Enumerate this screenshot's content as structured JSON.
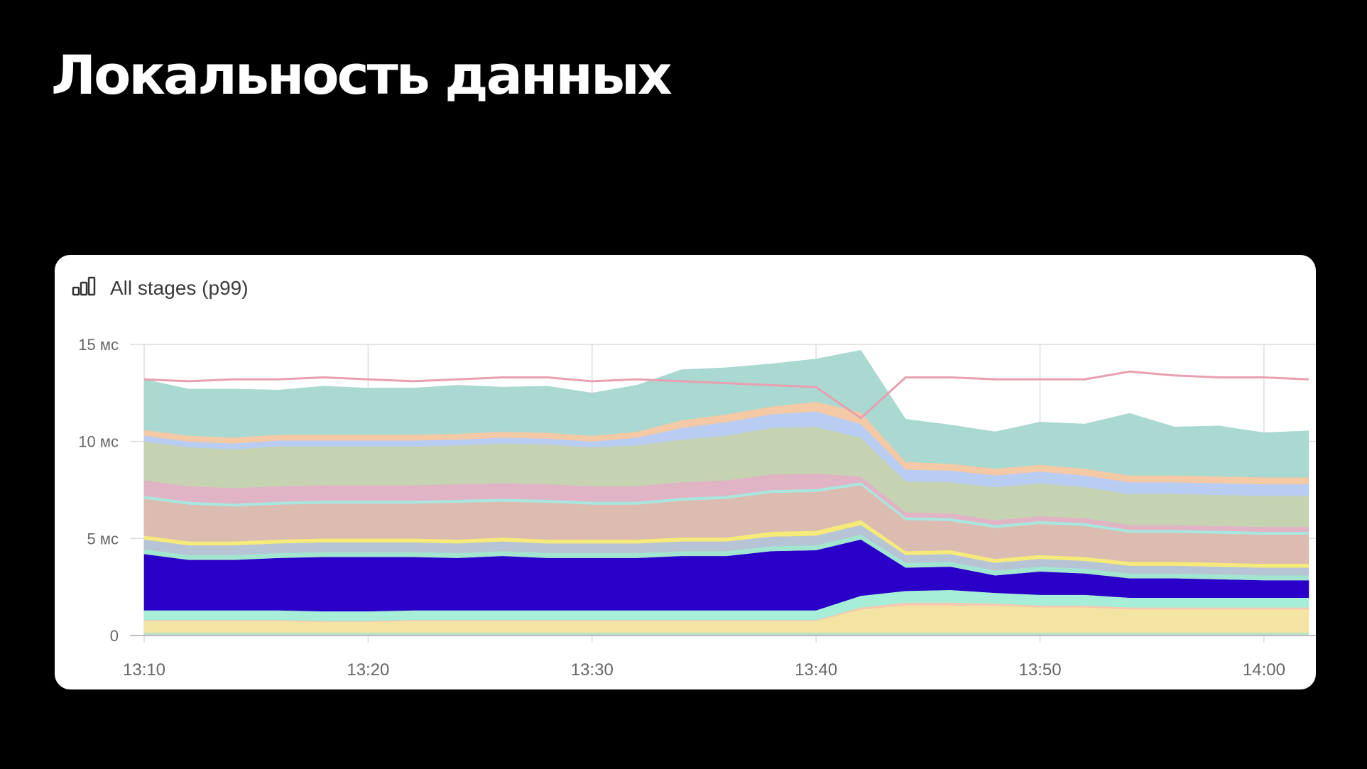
{
  "slide": {
    "title": "Локальность данных"
  },
  "panel": {
    "title": "All stages (p99)",
    "icon": "bar-chart-icon"
  },
  "chart_data": {
    "type": "area",
    "stacked": true,
    "title": "All stages (p99)",
    "x_ticks": [
      "13:10",
      "13:20",
      "13:30",
      "13:40",
      "13:50",
      "14:00"
    ],
    "y_ticks": [
      {
        "value": 0,
        "label": "0"
      },
      {
        "value": 5,
        "label": "5 мс"
      },
      {
        "value": 10,
        "label": "10 мс"
      },
      {
        "value": 15,
        "label": "15 мс"
      }
    ],
    "ylim": [
      0,
      15
    ],
    "xlim": [
      0,
      52
    ],
    "grid": true,
    "x": [
      0,
      2,
      4,
      6,
      8,
      10,
      12,
      14,
      16,
      18,
      20,
      22,
      24,
      26,
      28,
      30,
      32,
      34,
      36,
      38,
      40,
      42,
      44,
      46,
      48,
      50,
      52
    ],
    "series": [
      {
        "color": "#b9e3c6",
        "values": [
          0.15,
          0.15,
          0.15,
          0.15,
          0.15,
          0.15,
          0.15,
          0.15,
          0.15,
          0.15,
          0.15,
          0.15,
          0.15,
          0.15,
          0.15,
          0.15,
          0.15,
          0.15,
          0.15,
          0.15,
          0.15,
          0.15,
          0.15,
          0.15,
          0.15,
          0.15,
          0.15
        ]
      },
      {
        "color": "#f3e4a4",
        "values": [
          0.6,
          0.6,
          0.6,
          0.6,
          0.55,
          0.55,
          0.6,
          0.6,
          0.6,
          0.6,
          0.6,
          0.6,
          0.6,
          0.6,
          0.6,
          0.6,
          1.2,
          1.4,
          1.4,
          1.4,
          1.3,
          1.3,
          1.2,
          1.2,
          1.2,
          1.2,
          1.2
        ]
      },
      {
        "color": "#f5c8b0",
        "values": [
          0.05,
          0.05,
          0.05,
          0.05,
          0.05,
          0.05,
          0.05,
          0.05,
          0.05,
          0.05,
          0.05,
          0.05,
          0.05,
          0.05,
          0.05,
          0.05,
          0.1,
          0.15,
          0.15,
          0.1,
          0.1,
          0.1,
          0.1,
          0.1,
          0.1,
          0.1,
          0.1
        ]
      },
      {
        "color": "#a6eed8",
        "values": [
          0.5,
          0.5,
          0.5,
          0.5,
          0.5,
          0.5,
          0.5,
          0.5,
          0.5,
          0.5,
          0.5,
          0.5,
          0.5,
          0.5,
          0.5,
          0.5,
          0.6,
          0.6,
          0.65,
          0.55,
          0.55,
          0.55,
          0.5,
          0.5,
          0.5,
          0.5,
          0.5
        ]
      },
      {
        "color": "#2a00c9",
        "values": [
          2.9,
          2.6,
          2.6,
          2.7,
          2.8,
          2.8,
          2.75,
          2.7,
          2.8,
          2.7,
          2.7,
          2.7,
          2.8,
          2.8,
          3.05,
          3.1,
          2.9,
          1.2,
          1.2,
          0.9,
          1.2,
          1.1,
          1.0,
          1.0,
          0.95,
          0.9,
          0.9
        ]
      },
      {
        "color": "#a3e6cf",
        "values": [
          0.25,
          0.25,
          0.25,
          0.25,
          0.25,
          0.25,
          0.25,
          0.25,
          0.25,
          0.25,
          0.25,
          0.25,
          0.25,
          0.25,
          0.25,
          0.25,
          0.25,
          0.25,
          0.25,
          0.25,
          0.25,
          0.25,
          0.25,
          0.25,
          0.25,
          0.25,
          0.25
        ]
      },
      {
        "color": "#b7c4d6",
        "values": [
          0.5,
          0.5,
          0.5,
          0.5,
          0.5,
          0.5,
          0.5,
          0.5,
          0.5,
          0.5,
          0.5,
          0.5,
          0.5,
          0.5,
          0.5,
          0.5,
          0.5,
          0.4,
          0.4,
          0.4,
          0.4,
          0.4,
          0.4,
          0.4,
          0.4,
          0.4,
          0.4
        ]
      },
      {
        "color": "#f5ea7a",
        "values": [
          0.2,
          0.2,
          0.2,
          0.2,
          0.2,
          0.2,
          0.2,
          0.2,
          0.2,
          0.2,
          0.2,
          0.2,
          0.2,
          0.2,
          0.25,
          0.25,
          0.25,
          0.2,
          0.2,
          0.2,
          0.2,
          0.2,
          0.2,
          0.2,
          0.2,
          0.2,
          0.2
        ]
      },
      {
        "color": "#dcbcb0",
        "values": [
          1.9,
          1.9,
          1.8,
          1.8,
          1.8,
          1.8,
          1.8,
          1.9,
          1.85,
          1.9,
          1.8,
          1.8,
          1.9,
          2.0,
          2.0,
          2.0,
          1.8,
          1.6,
          1.5,
          1.6,
          1.6,
          1.6,
          1.5,
          1.5,
          1.5,
          1.5,
          1.5
        ]
      },
      {
        "color": "#a8e6de",
        "values": [
          0.15,
          0.15,
          0.15,
          0.15,
          0.15,
          0.15,
          0.15,
          0.15,
          0.15,
          0.15,
          0.15,
          0.15,
          0.15,
          0.15,
          0.15,
          0.15,
          0.15,
          0.15,
          0.15,
          0.15,
          0.15,
          0.15,
          0.15,
          0.15,
          0.15,
          0.15,
          0.15
        ]
      },
      {
        "color": "#e0b4c4",
        "values": [
          0.8,
          0.8,
          0.8,
          0.8,
          0.8,
          0.8,
          0.8,
          0.8,
          0.8,
          0.8,
          0.8,
          0.8,
          0.8,
          0.8,
          0.8,
          0.8,
          0.3,
          0.25,
          0.25,
          0.25,
          0.25,
          0.25,
          0.25,
          0.25,
          0.25,
          0.25,
          0.25
        ]
      },
      {
        "color": "#c5d3b2",
        "values": [
          2.0,
          2.0,
          2.0,
          2.05,
          2.0,
          2.0,
          2.0,
          2.0,
          2.05,
          2.05,
          2.0,
          2.1,
          2.2,
          2.3,
          2.4,
          2.4,
          2.0,
          1.6,
          1.6,
          1.7,
          1.7,
          1.6,
          1.6,
          1.6,
          1.6,
          1.6,
          1.6
        ]
      },
      {
        "color": "#b9cdf3",
        "values": [
          0.3,
          0.3,
          0.3,
          0.3,
          0.3,
          0.3,
          0.3,
          0.3,
          0.3,
          0.3,
          0.3,
          0.4,
          0.6,
          0.7,
          0.7,
          0.8,
          0.7,
          0.6,
          0.6,
          0.6,
          0.6,
          0.6,
          0.6,
          0.6,
          0.6,
          0.6,
          0.6
        ]
      },
      {
        "color": "#f4c9a6",
        "values": [
          0.3,
          0.3,
          0.3,
          0.3,
          0.3,
          0.3,
          0.3,
          0.3,
          0.3,
          0.3,
          0.3,
          0.3,
          0.4,
          0.4,
          0.4,
          0.5,
          0.6,
          0.4,
          0.35,
          0.35,
          0.35,
          0.35,
          0.35,
          0.35,
          0.35,
          0.35,
          0.35
        ]
      },
      {
        "color": "#a9d9d1",
        "values": [
          2.6,
          2.4,
          2.5,
          2.3,
          2.5,
          2.4,
          2.4,
          2.5,
          2.3,
          2.4,
          2.2,
          2.4,
          2.6,
          2.4,
          2.2,
          2.2,
          3.2,
          2.2,
          2.0,
          1.9,
          2.2,
          2.3,
          3.2,
          2.5,
          2.6,
          2.3,
          2.4
        ]
      }
    ],
    "reference_line": {
      "color": "#e8a0b0",
      "values": [
        13.2,
        13.1,
        13.2,
        13.2,
        13.3,
        13.2,
        13.1,
        13.2,
        13.3,
        13.3,
        13.1,
        13.2,
        13.1,
        13.0,
        12.9,
        12.8,
        11.2,
        13.3,
        13.3,
        13.2,
        13.2,
        13.2,
        13.6,
        13.4,
        13.3,
        13.3,
        13.2
      ]
    }
  }
}
